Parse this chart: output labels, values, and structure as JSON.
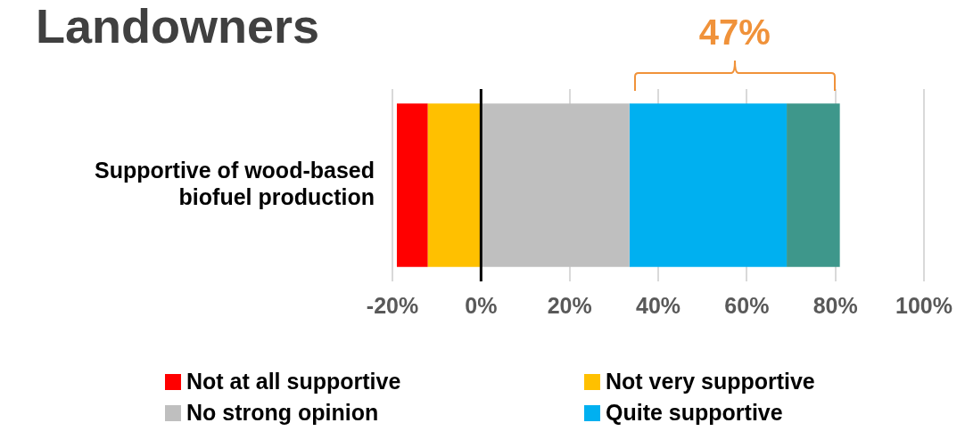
{
  "chart_data": {
    "type": "bar",
    "orientation": "horizontal",
    "stacked": true,
    "title": "Landowners",
    "categories": [
      "Supportive of wood-based biofuel production"
    ],
    "series": [
      {
        "name": "Not very supportive",
        "color": "#ffc000",
        "values": [
          -12
        ]
      },
      {
        "name": "Not at all supportive",
        "color": "#ff0000",
        "values": [
          -7
        ]
      },
      {
        "name": "No strong opinion",
        "color": "#bfbfbf",
        "values": [
          33.5
        ]
      },
      {
        "name": "Quite supportive",
        "color": "#00b0f0",
        "values": [
          35.5
        ]
      },
      {
        "color": "#3e978b",
        "values": [
          12
        ]
      }
    ],
    "xlim": [
      -20,
      100
    ],
    "xticks": [
      {
        "value": -20,
        "label": "-20%"
      },
      {
        "value": 0,
        "label": "0%"
      },
      {
        "value": 20,
        "label": "20%"
      },
      {
        "value": 40,
        "label": "40%"
      },
      {
        "value": 60,
        "label": "60%"
      },
      {
        "value": 80,
        "label": "80%"
      },
      {
        "value": 100,
        "label": "100%"
      }
    ],
    "grid": "x",
    "legend": "bottom",
    "ref_lines": [
      {
        "axis": "x",
        "value": 0,
        "color": "#000000"
      }
    ],
    "annotations": [
      "47%"
    ]
  }
}
